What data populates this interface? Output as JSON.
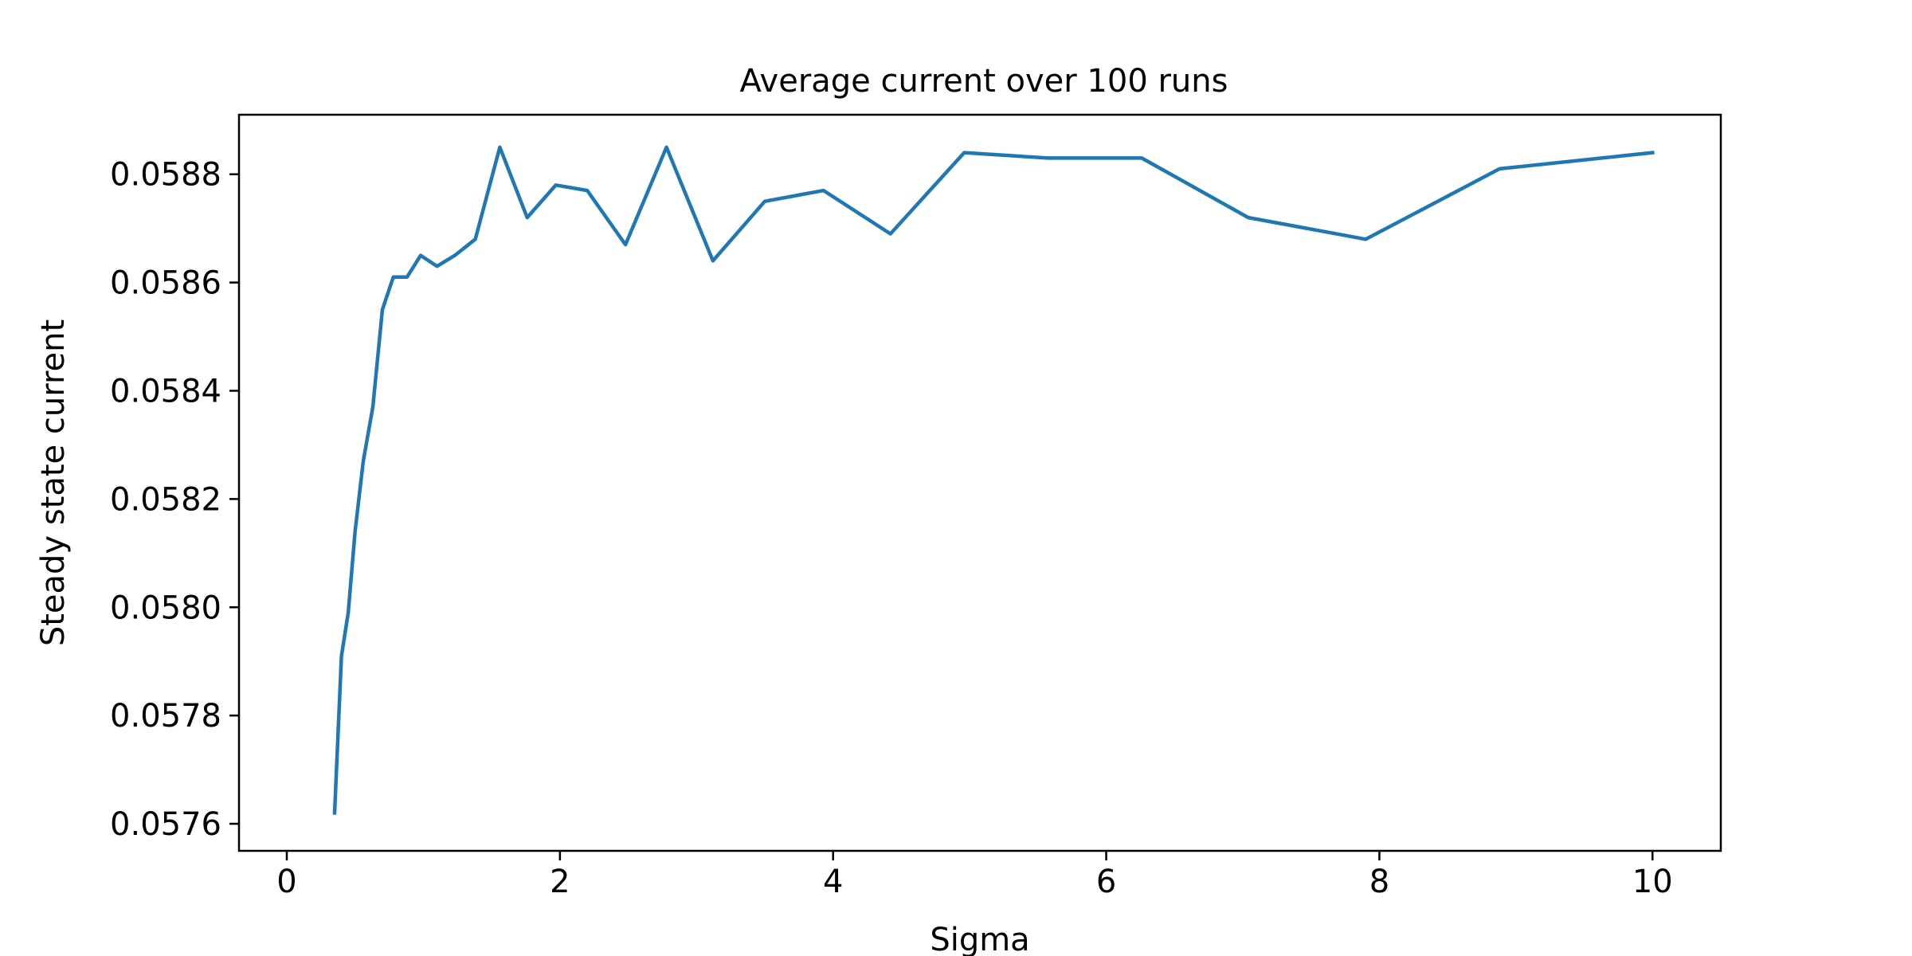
{
  "chart_data": {
    "type": "line",
    "title": "Average current over 100 runs",
    "xlabel": "Sigma",
    "ylabel": "Steady state current",
    "xlim": [
      -0.35,
      10.5
    ],
    "ylim": [
      0.05755,
      0.05891
    ],
    "xticks": [
      0,
      2,
      4,
      6,
      8,
      10
    ],
    "xtick_labels": [
      "0",
      "2",
      "4",
      "6",
      "8",
      "10"
    ],
    "yticks": [
      0.0576,
      0.0578,
      0.058,
      0.0582,
      0.0584,
      0.0586,
      0.0588
    ],
    "ytick_labels": [
      "0.0576",
      "0.0578",
      "0.0580",
      "0.0582",
      "0.0584",
      "0.0586",
      "0.0588"
    ],
    "grid": false,
    "series": [
      {
        "color": "#1f77b4",
        "x": [
          0.35,
          0.4,
          0.45,
          0.5,
          0.56,
          0.63,
          0.7,
          0.78,
          0.88,
          0.98,
          1.1,
          1.23,
          1.38,
          1.56,
          1.76,
          1.97,
          2.2,
          2.48,
          2.78,
          3.12,
          3.5,
          3.93,
          4.42,
          4.96,
          5.57,
          6.26,
          7.04,
          7.9,
          8.88,
          10.0
        ],
        "y": [
          0.05762,
          0.05791,
          0.05799,
          0.05814,
          0.05827,
          0.05837,
          0.05855,
          0.05861,
          0.05861,
          0.05865,
          0.05863,
          0.05865,
          0.05868,
          0.05885,
          0.05872,
          0.05878,
          0.05877,
          0.05867,
          0.05885,
          0.05864,
          0.05875,
          0.05877,
          0.05869,
          0.05884,
          0.05883,
          0.05883,
          0.05872,
          0.05868,
          0.05881,
          0.05884
        ]
      }
    ]
  }
}
